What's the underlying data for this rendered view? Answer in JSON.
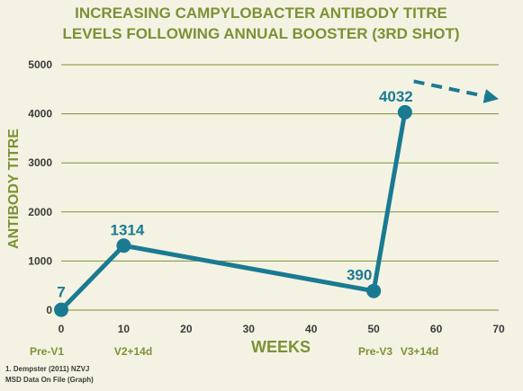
{
  "chart_data": {
    "type": "line",
    "title_lines": [
      "INCREASING CAMPYLOBACTER ANTIBODY TITRE",
      "LEVELS FOLLOWING ANNUAL BOOSTER (3RD SHOT)"
    ],
    "xlabel": "WEEKS",
    "ylabel": "ANTIBODY TITRE",
    "xlim": [
      0,
      70
    ],
    "ylim": [
      0,
      5000
    ],
    "x_ticks": [
      0,
      10,
      20,
      30,
      40,
      50,
      60,
      70
    ],
    "y_ticks": [
      0,
      1000,
      2000,
      3000,
      4000,
      5000
    ],
    "grid": true,
    "series": [
      {
        "x": [
          0,
          10,
          50,
          55
        ],
        "values": [
          7,
          1314,
          390,
          4032
        ],
        "labels": [
          "7",
          "1314",
          "390",
          "4032"
        ],
        "color": "#1a7a92"
      }
    ],
    "trend_arrow": {
      "from": [
        55,
        4700
      ],
      "to": [
        70,
        4300
      ]
    },
    "phase_labels": [
      {
        "text": "Pre-V1",
        "x": 0
      },
      {
        "text": "V2+14d",
        "x": 10
      },
      {
        "text": "Pre-V3",
        "x": 50
      },
      {
        "text": "V3+14d",
        "x": 55
      }
    ]
  },
  "footnote": {
    "line1": "1. Dempster (2011) NZVJ",
    "line2": "MSD Data On File (Graph)"
  }
}
